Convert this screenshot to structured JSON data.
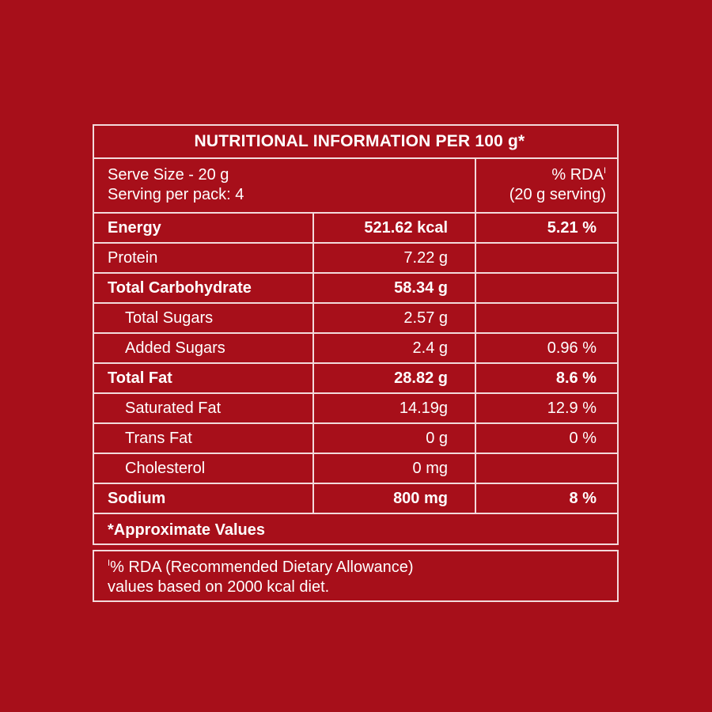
{
  "table": {
    "title": "NUTRITIONAL INFORMATION PER 100 g*",
    "serve_size": "Serve Size - 20 g",
    "serving_per_pack": "Serving per pack: 4",
    "rda_header": "% RDA",
    "rda_marker": "I",
    "rda_serving": "(20 g serving)",
    "rows": [
      {
        "name": "Energy",
        "amount": "521.62 kcal",
        "rda": "5.21 %",
        "bold": true,
        "indent": false
      },
      {
        "name": "Protein",
        "amount": "7.22 g",
        "rda": "",
        "bold": false,
        "indent": false
      },
      {
        "name": "Total Carbohydrate",
        "amount": "58.34 g",
        "rda": "",
        "bold": true,
        "indent": false
      },
      {
        "name": "Total Sugars",
        "amount": "2.57 g",
        "rda": "",
        "bold": false,
        "indent": true
      },
      {
        "name": "Added Sugars",
        "amount": "2.4 g",
        "rda": "0.96 %",
        "bold": false,
        "indent": true
      },
      {
        "name": "Total Fat",
        "amount": "28.82 g",
        "rda": "8.6 %",
        "bold": true,
        "indent": false
      },
      {
        "name": "Saturated Fat",
        "amount": "14.19g",
        "rda": "12.9 %",
        "bold": false,
        "indent": true
      },
      {
        "name": "Trans Fat",
        "amount": "0 g",
        "rda": "0 %",
        "bold": false,
        "indent": true
      },
      {
        "name": "Cholesterol",
        "amount": "0 mg",
        "rda": "",
        "bold": false,
        "indent": true
      },
      {
        "name": "Sodium",
        "amount": "800 mg",
        "rda": "8 %",
        "bold": true,
        "indent": false
      }
    ],
    "footnote": "*Approximate Values"
  },
  "note": {
    "marker": "I",
    "line1": "% RDA (Recommended Dietary Allowance)",
    "line2": "values based on 2000 kcal diet."
  },
  "colors": {
    "background": "#a70f1a",
    "text": "#ffffff",
    "border": "#f3d9db"
  }
}
